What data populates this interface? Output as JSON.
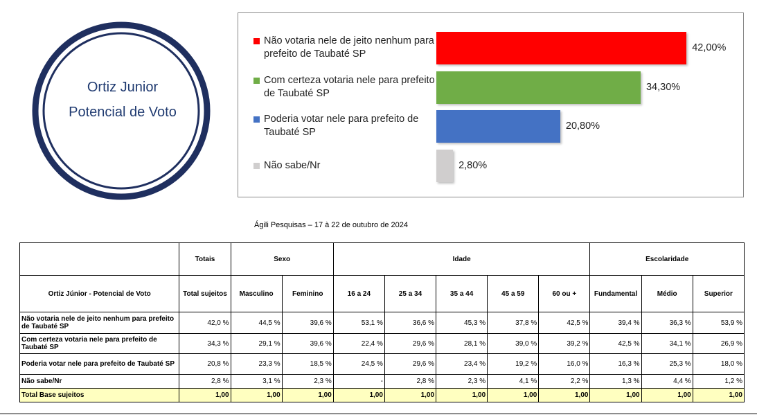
{
  "badge": {
    "title": "Ortiz Junior",
    "subtitle": "Potencial de Voto"
  },
  "chart_data": {
    "type": "bar",
    "orientation": "horizontal",
    "categories": [
      "Não votaria nele de jeito nenhum para prefeito de Taubaté SP",
      "Com certeza votaria nele para prefeito de Taubaté SP",
      "Poderia votar nele para prefeito de Taubaté SP",
      "Não sabe/Nr"
    ],
    "values": [
      42,
      34.3,
      20.8,
      2.8
    ],
    "value_labels": [
      "42,00%",
      "34,30%",
      "20,80%",
      "2,80%"
    ],
    "colors": [
      "#ff0000",
      "#70ad47",
      "#4472c4",
      "#d0cece"
    ],
    "xlim": [
      0,
      50
    ]
  },
  "caption": "Ágili Pesquisas – 17 à 22 de outubro de 2024",
  "table": {
    "title": "Ortiz Júnior - Potencial de Voto",
    "groups": [
      {
        "label": "Totais",
        "columns": [
          "Total sujeitos"
        ]
      },
      {
        "label": "Sexo",
        "columns": [
          "Masculino",
          "Feminino"
        ]
      },
      {
        "label": "Idade",
        "columns": [
          "16 a 24",
          "25 a 34",
          "35 a 44",
          "45 a 59",
          "60 ou +"
        ]
      },
      {
        "label": "Escolaridade",
        "columns": [
          "Fundamental",
          "Médio",
          "Superior"
        ]
      }
    ],
    "rows": [
      {
        "label": "Não votaria nele de jeito nenhum para prefeito de Taubaté SP",
        "cells": [
          "42,0 %",
          "44,5 %",
          "39,6 %",
          "53,1 %",
          "36,6 %",
          "45,3 %",
          "37,8 %",
          "42,5 %",
          "39,4 %",
          "36,3 %",
          "53,9 %"
        ]
      },
      {
        "label": "Com certeza votaria nele para prefeito de Taubaté SP",
        "cells": [
          "34,3 %",
          "29,1 %",
          "39,6 %",
          "22,4 %",
          "29,6 %",
          "28,1 %",
          "39,0 %",
          "39,2 %",
          "42,5 %",
          "34,1 %",
          "26,9 %"
        ]
      },
      {
        "label": "Poderia votar nele para prefeito de Taubaté SP",
        "cells": [
          "20,8 %",
          "23,3 %",
          "18,5 %",
          "24,5 %",
          "29,6 %",
          "23,4 %",
          "19,2 %",
          "16,0 %",
          "16,3 %",
          "25,3 %",
          "18,0 %"
        ]
      },
      {
        "label": "Não sabe/Nr",
        "cells": [
          "2,8 %",
          "3,1 %",
          "2,3 %",
          "-",
          "2,8 %",
          "2,3 %",
          "4,1 %",
          "2,2 %",
          "1,3 %",
          "4,4 %",
          "1,2 %"
        ]
      },
      {
        "label": "Total Base sujeitos",
        "cells": [
          "1,00",
          "1,00",
          "1,00",
          "1,00",
          "1,00",
          "1,00",
          "1,00",
          "1,00",
          "1,00",
          "1,00",
          "1,00"
        ]
      }
    ]
  }
}
